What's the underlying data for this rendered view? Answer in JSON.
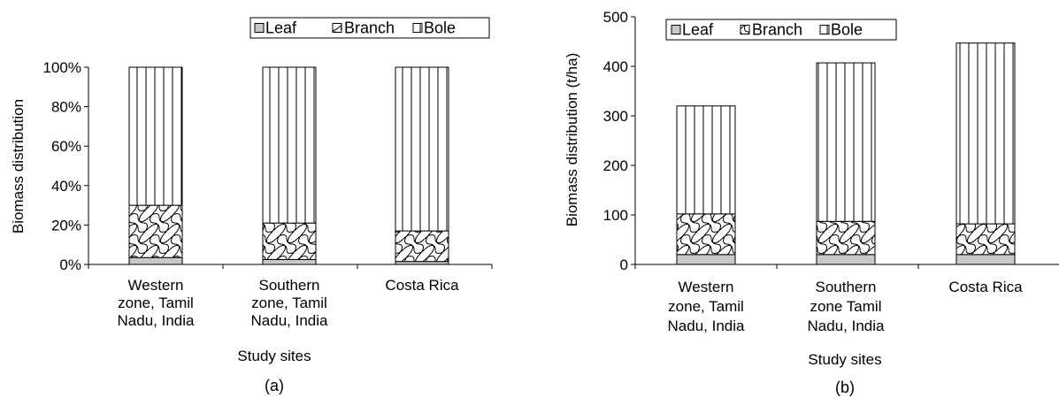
{
  "charts": [
    {
      "panel_label": "(a)",
      "chart_data": {
        "type": "bar",
        "stacked": true,
        "categories": [
          [
            "Western",
            "zone, Tamil",
            "Nadu, India"
          ],
          [
            "Southern",
            "zone, Tamil",
            "Nadu, India"
          ],
          [
            "Costa Rica"
          ]
        ],
        "series": [
          {
            "name": "Leaf",
            "pattern": "gray",
            "values": [
              3.5,
              2.5,
              1.5
            ]
          },
          {
            "name": "Branch",
            "pattern": "wave",
            "values": [
              26.5,
              18.5,
              15.5
            ]
          },
          {
            "name": "Bole",
            "pattern": "vertical",
            "values": [
              70,
              79,
              83
            ]
          }
        ],
        "xlabel": "Study sites",
        "ylabel": "Biomass distribution",
        "ylim": [
          0,
          100
        ],
        "yticks": [
          0,
          20,
          40,
          60,
          80,
          100
        ],
        "ytick_labels": [
          "0%",
          "20%",
          "40%",
          "60%",
          "80%",
          "100%"
        ],
        "legend_placement": "top-center"
      }
    },
    {
      "panel_label": "(b)",
      "chart_data": {
        "type": "bar",
        "stacked": true,
        "categories": [
          [
            "Western",
            "zone, Tamil",
            "Nadu, India"
          ],
          [
            "Southern",
            "zone Tamil",
            "Nadu, India"
          ],
          [
            "Costa Rica"
          ]
        ],
        "series": [
          {
            "name": "Leaf",
            "pattern": "gray",
            "values": [
              20,
              20,
              20
            ]
          },
          {
            "name": "Branch",
            "pattern": "wave",
            "values": [
              82,
              67,
              62
            ]
          },
          {
            "name": "Bole",
            "pattern": "vertical",
            "values": [
              218,
              320,
              365
            ]
          }
        ],
        "xlabel": "Study sites",
        "ylabel": "Biomass distribution (t/ha)",
        "ylim": [
          0,
          500
        ],
        "yticks": [
          0,
          100,
          200,
          300,
          400,
          500
        ],
        "ytick_labels": [
          "0",
          "100",
          "200",
          "300",
          "400",
          "500"
        ],
        "legend_placement": "top-left"
      }
    }
  ]
}
